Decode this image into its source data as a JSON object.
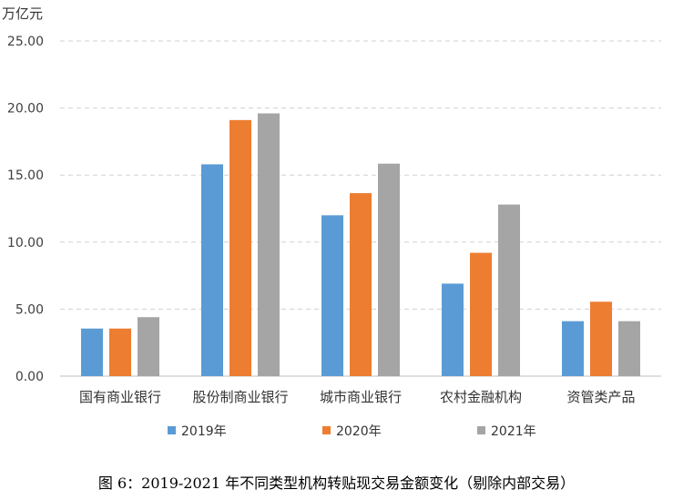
{
  "chart_data": {
    "type": "bar",
    "unit_label": "万亿元",
    "categories": [
      "国有商业银行",
      "股份制商业银行",
      "城市商业银行",
      "农村金融机构",
      "资管类产品"
    ],
    "series": [
      {
        "name": "2019年",
        "color": "#5b9bd5",
        "values": [
          3.55,
          15.8,
          12.0,
          6.9,
          4.1
        ]
      },
      {
        "name": "2020年",
        "color": "#ed7d31",
        "values": [
          3.55,
          19.1,
          13.65,
          9.2,
          5.55
        ]
      },
      {
        "name": "2021年",
        "color": "#a5a5a5",
        "values": [
          4.4,
          19.6,
          15.85,
          12.8,
          4.1
        ]
      }
    ],
    "ylim": [
      0,
      25
    ],
    "yticks": [
      "0.00",
      "5.00",
      "10.00",
      "15.00",
      "20.00",
      "25.00"
    ],
    "grid": true,
    "legend_position": "bottom"
  },
  "caption": "图 6：2019-2021 年不同类型机构转贴现交易金额变化（剔除内部交易）"
}
